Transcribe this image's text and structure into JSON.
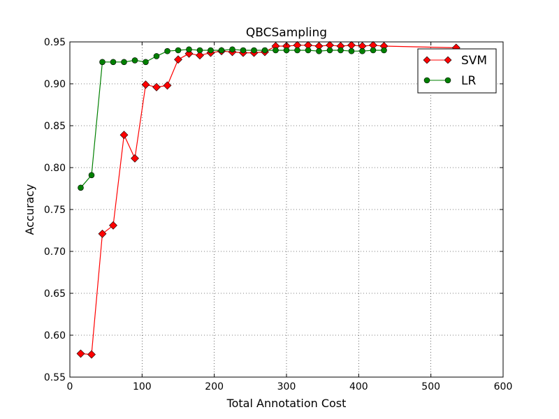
{
  "chart_data": {
    "type": "line",
    "title": "QBCSampling",
    "xlabel": "Total Annotation Cost",
    "ylabel": "Accuracy",
    "xlim": [
      0,
      600
    ],
    "ylim": [
      0.55,
      0.95
    ],
    "xticks": [
      0,
      100,
      200,
      300,
      400,
      500,
      600
    ],
    "xtick_labels": [
      "0",
      "100",
      "200",
      "300",
      "400",
      "500",
      "600"
    ],
    "yticks": [
      0.55,
      0.6,
      0.65,
      0.7,
      0.75,
      0.8,
      0.85,
      0.9,
      0.95
    ],
    "ytick_labels": [
      "0.55",
      "0.60",
      "0.65",
      "0.70",
      "0.75",
      "0.80",
      "0.85",
      "0.90",
      "0.95"
    ],
    "grid": true,
    "legend_position": "top-right",
    "series": [
      {
        "name": "SVM",
        "color": "#ff0000",
        "marker": "diamond",
        "x": [
          15,
          30,
          45,
          60,
          75,
          90,
          105,
          120,
          135,
          150,
          165,
          180,
          195,
          210,
          225,
          240,
          255,
          270,
          285,
          300,
          315,
          330,
          345,
          360,
          375,
          390,
          405,
          420,
          435,
          535
        ],
        "y": [
          0.578,
          0.577,
          0.721,
          0.731,
          0.839,
          0.811,
          0.899,
          0.896,
          0.898,
          0.929,
          0.936,
          0.934,
          0.937,
          0.939,
          0.938,
          0.937,
          0.937,
          0.938,
          0.945,
          0.945,
          0.946,
          0.946,
          0.945,
          0.946,
          0.945,
          0.946,
          0.945,
          0.946,
          0.945,
          0.943
        ]
      },
      {
        "name": "LR",
        "color": "#008000",
        "marker": "circle",
        "x": [
          15,
          30,
          45,
          60,
          75,
          90,
          105,
          120,
          135,
          150,
          165,
          180,
          195,
          210,
          225,
          240,
          255,
          270,
          285,
          300,
          315,
          330,
          345,
          360,
          375,
          390,
          405,
          420,
          435
        ],
        "y": [
          0.776,
          0.791,
          0.926,
          0.926,
          0.926,
          0.928,
          0.926,
          0.933,
          0.939,
          0.94,
          0.941,
          0.94,
          0.94,
          0.94,
          0.941,
          0.94,
          0.94,
          0.94,
          0.94,
          0.94,
          0.94,
          0.94,
          0.939,
          0.94,
          0.94,
          0.939,
          0.939,
          0.94,
          0.94
        ]
      }
    ]
  }
}
